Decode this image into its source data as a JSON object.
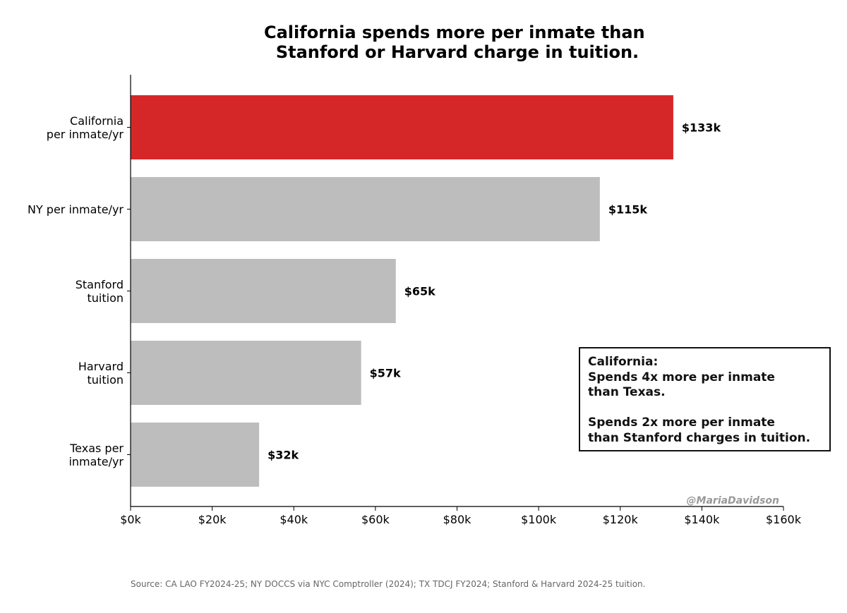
{
  "chart_data": {
    "type": "bar",
    "orientation": "horizontal",
    "title_lines": [
      "California spends more per inmate than",
      "Stanford or Harvard charge in tuition."
    ],
    "categories": [
      [
        "California",
        "per inmate/yr"
      ],
      [
        "NY per inmate/yr"
      ],
      [
        "Stanford",
        "tuition"
      ],
      [
        "Harvard",
        "tuition"
      ],
      [
        "Texas per",
        "inmate/yr"
      ]
    ],
    "values": [
      133,
      115,
      65,
      56.5,
      31.5
    ],
    "value_labels": [
      "$133k",
      "$115k",
      "$65k",
      "$57k",
      "$32k"
    ],
    "xlim": [
      0,
      160
    ],
    "xticks": [
      0,
      20,
      40,
      60,
      80,
      100,
      120,
      140,
      160
    ],
    "xtick_labels": [
      "$0k",
      "$20k",
      "$40k",
      "$60k",
      "$80k",
      "$100k",
      "$120k",
      "$140k",
      "$160k"
    ],
    "xlabel": "",
    "ylabel": "",
    "units": "thousand USD",
    "grid": false,
    "colors": {
      "highlight": "#d62728",
      "default": "#bdbdbd"
    },
    "highlight_index": 0,
    "annotation_lines": [
      "California:",
      "Spends 4x more per inmate",
      "than Texas.",
      "",
      "Spends 2x more per inmate",
      "than Stanford charges in tuition."
    ],
    "watermark": "@MariaDavidson",
    "source": "Source: CA LAO FY2024-25; NY DOCCS via NYC Comptroller (2024); TX TDCJ FY2024; Stanford & Harvard 2024-25 tuition."
  }
}
